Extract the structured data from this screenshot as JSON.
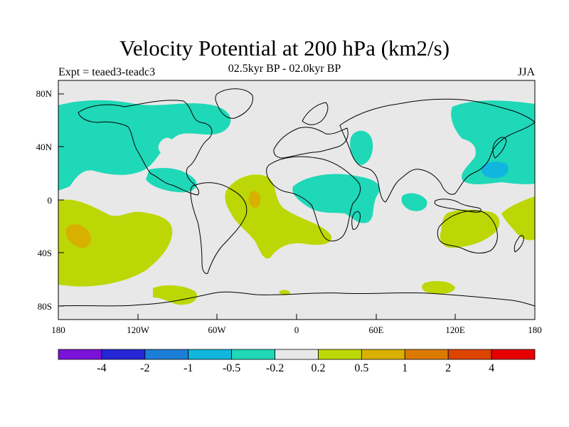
{
  "title": "Velocity Potential at 200 hPa (km2/s)",
  "subtitle": "02.5kyr BP - 02.0kyr BP",
  "experiment": "Expt = teaed3-teadc3",
  "season": "JJA",
  "axes": {
    "x_ticks": [
      "180",
      "120W",
      "60W",
      "0",
      "60E",
      "120E",
      "180"
    ],
    "y_ticks": [
      "80N",
      "40N",
      "0",
      "40S",
      "80S"
    ]
  },
  "colorbar": {
    "labels": [
      "-4",
      "-2",
      "-1",
      "-0.5",
      "-0.2",
      "0.2",
      "0.5",
      "1",
      "2",
      "4"
    ],
    "colors": [
      "#7b12d8",
      "#2626d4",
      "#1c7ed6",
      "#10b6de",
      "#1fd8b8",
      "#e8e8e8",
      "#bcd705",
      "#d8b000",
      "#dc7a00",
      "#dd4400",
      "#e60000"
    ]
  },
  "colors": {
    "neutral": "#e8e8e8",
    "cyan": "#1fd8b8",
    "blue": "#10b6de",
    "yellowgreen": "#bcd705",
    "gold": "#d8b000"
  }
}
